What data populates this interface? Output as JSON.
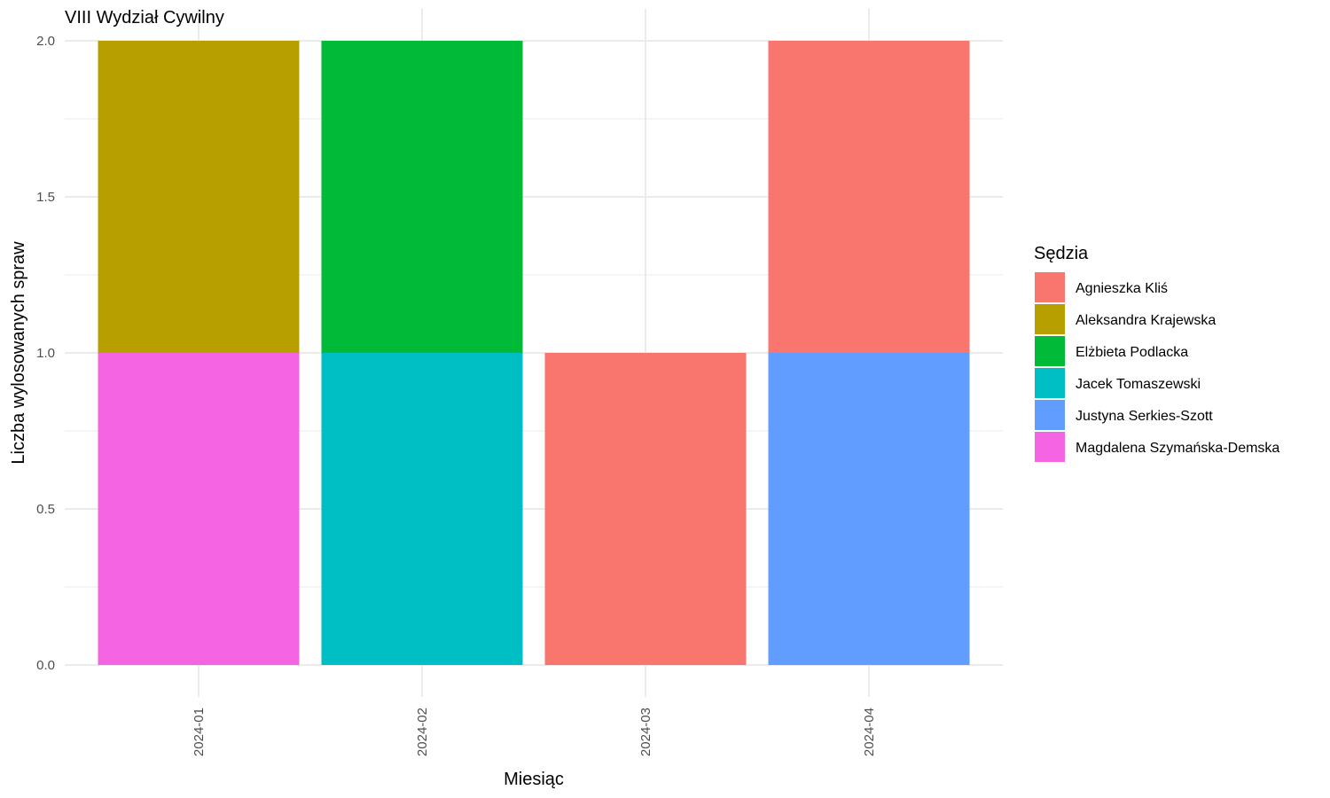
{
  "chart_data": {
    "type": "bar",
    "stacked": true,
    "title": "VIII Wydział Cywilny",
    "xlabel": "Miesiąc",
    "ylabel": "Liczba wylosowanych spraw",
    "categories": [
      "2024-01",
      "2024-02",
      "2024-03",
      "2024-04"
    ],
    "ylim": [
      0,
      2
    ],
    "yticks": [
      "0.0",
      "0.5",
      "1.0",
      "1.5",
      "2.0"
    ],
    "grid": true,
    "legend": {
      "title": "Sędzia",
      "position": "right"
    },
    "series": [
      {
        "name": "Agnieszka Kliś",
        "color": "#F8766D",
        "values": [
          0,
          0,
          1,
          1
        ]
      },
      {
        "name": "Aleksandra Krajewska",
        "color": "#B79F00",
        "values": [
          1,
          0,
          0,
          0
        ]
      },
      {
        "name": "Elżbieta Podlacka",
        "color": "#00BA38",
        "values": [
          0,
          1,
          0,
          0
        ]
      },
      {
        "name": "Jacek Tomaszewski",
        "color": "#00BFC4",
        "values": [
          0,
          1,
          0,
          0
        ]
      },
      {
        "name": "Justyna Serkies-Szott",
        "color": "#619CFF",
        "values": [
          0,
          0,
          0,
          1
        ]
      },
      {
        "name": "Magdalena Szymańska-Demska",
        "color": "#F564E3",
        "values": [
          1,
          0,
          0,
          0
        ]
      }
    ]
  }
}
